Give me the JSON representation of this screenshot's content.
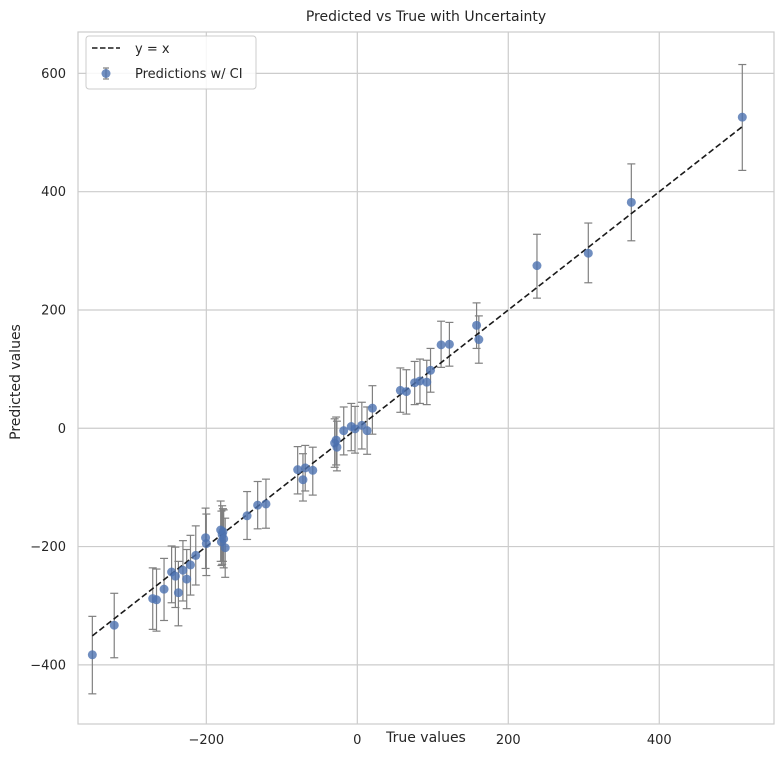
{
  "chart_data": {
    "type": "scatter",
    "title": "Predicted vs True with Uncertainty",
    "xlabel": "True values",
    "ylabel": "Predicted values",
    "xlim": [
      -370,
      552
    ],
    "ylim": [
      -500,
      670
    ],
    "xticks": [
      -200,
      0,
      200,
      400
    ],
    "yticks": [
      -400,
      -200,
      0,
      200,
      400,
      600
    ],
    "grid": true,
    "legend_position": "top-left",
    "colors": {
      "points": "#4c72b0",
      "errorbars": "#808080",
      "reference_line": "#1a1a1a",
      "grid": "#cccccc",
      "frame": "#cccccc"
    },
    "series": [
      {
        "name": "y = x",
        "kind": "line",
        "style": "dashed",
        "x": [
          -351,
          510
        ],
        "y": [
          -351,
          510
        ]
      },
      {
        "name": "Predictions w/ CI",
        "kind": "errorbar",
        "points": [
          {
            "x": -351,
            "y": -383,
            "lo": -449,
            "hi": -318
          },
          {
            "x": -322,
            "y": -333,
            "lo": -388,
            "hi": -279
          },
          {
            "x": -271,
            "y": -288,
            "lo": -340,
            "hi": -236
          },
          {
            "x": -266,
            "y": -290,
            "lo": -343,
            "hi": -238
          },
          {
            "x": -256,
            "y": -272,
            "lo": -325,
            "hi": -220
          },
          {
            "x": -246,
            "y": -243,
            "lo": -295,
            "hi": -199
          },
          {
            "x": -241,
            "y": -250,
            "lo": -303,
            "hi": -201
          },
          {
            "x": -237,
            "y": -278,
            "lo": -334,
            "hi": -225
          },
          {
            "x": -231,
            "y": -240,
            "lo": -292,
            "hi": -190
          },
          {
            "x": -226,
            "y": -255,
            "lo": -305,
            "hi": -205
          },
          {
            "x": -221,
            "y": -231,
            "lo": -282,
            "hi": -181
          },
          {
            "x": -214,
            "y": -215,
            "lo": -265,
            "hi": -165
          },
          {
            "x": -201,
            "y": -185,
            "lo": -237,
            "hi": -135
          },
          {
            "x": -200,
            "y": -195,
            "lo": -249,
            "hi": -145
          },
          {
            "x": -181,
            "y": -172,
            "lo": -225,
            "hi": -123
          },
          {
            "x": -180,
            "y": -192,
            "lo": -232,
            "hi": -140
          },
          {
            "x": -179,
            "y": -180,
            "lo": -230,
            "hi": -131
          },
          {
            "x": -178,
            "y": -175,
            "lo": -225,
            "hi": -136
          },
          {
            "x": -177,
            "y": -187,
            "lo": -236,
            "hi": -138
          },
          {
            "x": -175,
            "y": -202,
            "lo": -252,
            "hi": -152
          },
          {
            "x": -146,
            "y": -148,
            "lo": -188,
            "hi": -107
          },
          {
            "x": -132,
            "y": -130,
            "lo": -170,
            "hi": -90
          },
          {
            "x": -121,
            "y": -128,
            "lo": -169,
            "hi": -86
          },
          {
            "x": -79,
            "y": -70,
            "lo": -111,
            "hi": -31
          },
          {
            "x": -72,
            "y": -87,
            "lo": -123,
            "hi": -43
          },
          {
            "x": -69,
            "y": -67,
            "lo": -106,
            "hi": -29
          },
          {
            "x": -59,
            "y": -71,
            "lo": -113,
            "hi": -32
          },
          {
            "x": -30,
            "y": -25,
            "lo": -66,
            "hi": 16
          },
          {
            "x": -28,
            "y": -20,
            "lo": -62,
            "hi": 19
          },
          {
            "x": -27,
            "y": -32,
            "lo": -72,
            "hi": 12
          },
          {
            "x": -18,
            "y": -4,
            "lo": -45,
            "hi": 36
          },
          {
            "x": -8,
            "y": 3,
            "lo": -38,
            "hi": 42
          },
          {
            "x": -3,
            "y": -1,
            "lo": -42,
            "hi": 37
          },
          {
            "x": 6,
            "y": 5,
            "lo": -35,
            "hi": 44
          },
          {
            "x": 13,
            "y": -4,
            "lo": -44,
            "hi": 36
          },
          {
            "x": 20,
            "y": 34,
            "lo": -10,
            "hi": 72
          },
          {
            "x": 57,
            "y": 64,
            "lo": 27,
            "hi": 102
          },
          {
            "x": 65,
            "y": 62,
            "lo": 24,
            "hi": 99
          },
          {
            "x": 76,
            "y": 77,
            "lo": 40,
            "hi": 113
          },
          {
            "x": 83,
            "y": 80,
            "lo": 42,
            "hi": 117
          },
          {
            "x": 92,
            "y": 78,
            "lo": 40,
            "hi": 115
          },
          {
            "x": 97,
            "y": 98,
            "lo": 61,
            "hi": 135
          },
          {
            "x": 111,
            "y": 141,
            "lo": 103,
            "hi": 181
          },
          {
            "x": 122,
            "y": 142,
            "lo": 105,
            "hi": 179
          },
          {
            "x": 158,
            "y": 174,
            "lo": 135,
            "hi": 212
          },
          {
            "x": 161,
            "y": 150,
            "lo": 110,
            "hi": 190
          },
          {
            "x": 238,
            "y": 275,
            "lo": 220,
            "hi": 328
          },
          {
            "x": 306,
            "y": 296,
            "lo": 246,
            "hi": 347
          },
          {
            "x": 363,
            "y": 382,
            "lo": 317,
            "hi": 447
          },
          {
            "x": 510,
            "y": 526,
            "lo": 436,
            "hi": 615
          }
        ]
      }
    ]
  }
}
